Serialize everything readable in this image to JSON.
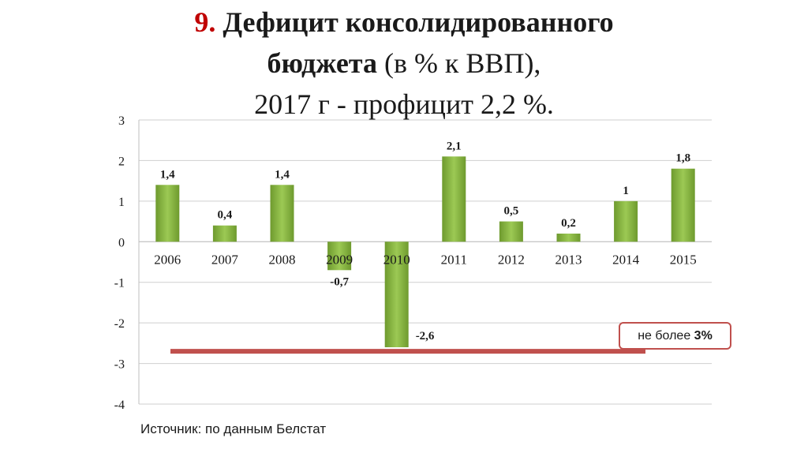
{
  "title": {
    "number": "9.",
    "line1_bold": "Дефицит консолидированного",
    "line2_bold": "бюджета",
    "line2_rest": " (в % к ВВП),",
    "line3": "2017 г - профицит 2,2 %."
  },
  "chart_data": {
    "type": "bar",
    "categories": [
      "2006",
      "2007",
      "2008",
      "2009",
      "2010",
      "2011",
      "2012",
      "2013",
      "2014",
      "2015"
    ],
    "values": [
      1.4,
      0.4,
      1.4,
      -0.7,
      -2.6,
      2.1,
      0.5,
      0.2,
      1,
      1.8
    ],
    "value_labels": [
      "1,4",
      "0,4",
      "1,4",
      "-0,7",
      "-2,6",
      "2,1",
      "0,5",
      "0,2",
      "1",
      "1,8"
    ],
    "ylim": [
      -4,
      3
    ],
    "yticks": [
      3,
      2,
      1,
      0,
      -1,
      -2,
      -3,
      -4
    ],
    "ytick_labels": [
      "3",
      "2",
      "1",
      "0",
      "-1",
      "-2",
      "-3",
      "-4"
    ],
    "grid": true,
    "bar_color": "#8dba4a",
    "reference_line": {
      "value": -2.7,
      "color": "#c0504d"
    }
  },
  "note": {
    "text": "не более ",
    "bold": "3%"
  },
  "source": "Источник: по данным Белстат"
}
